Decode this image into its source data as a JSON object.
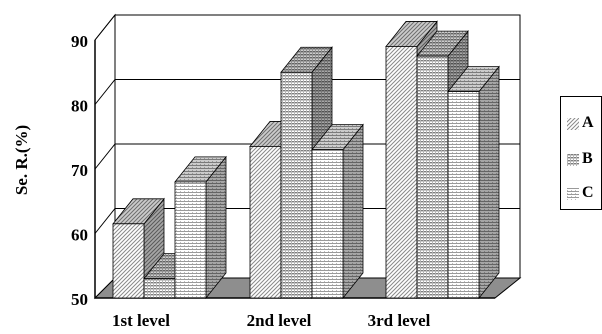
{
  "chart_data": {
    "type": "bar",
    "title": "",
    "xlabel": "",
    "ylabel": "Se. R.(%)",
    "categories": [
      "1st level",
      "2nd level",
      "3rd level"
    ],
    "series": [
      {
        "name": "A",
        "values": [
          61.5,
          73.5,
          89
        ]
      },
      {
        "name": "B",
        "values": [
          53,
          85,
          87.5
        ]
      },
      {
        "name": "C",
        "values": [
          68,
          73,
          82
        ]
      }
    ],
    "ylim": [
      50,
      90
    ],
    "yticks": [
      "50",
      "60",
      "70",
      "80",
      "90"
    ],
    "grid": true,
    "three_d": true,
    "legend_position": "right"
  }
}
